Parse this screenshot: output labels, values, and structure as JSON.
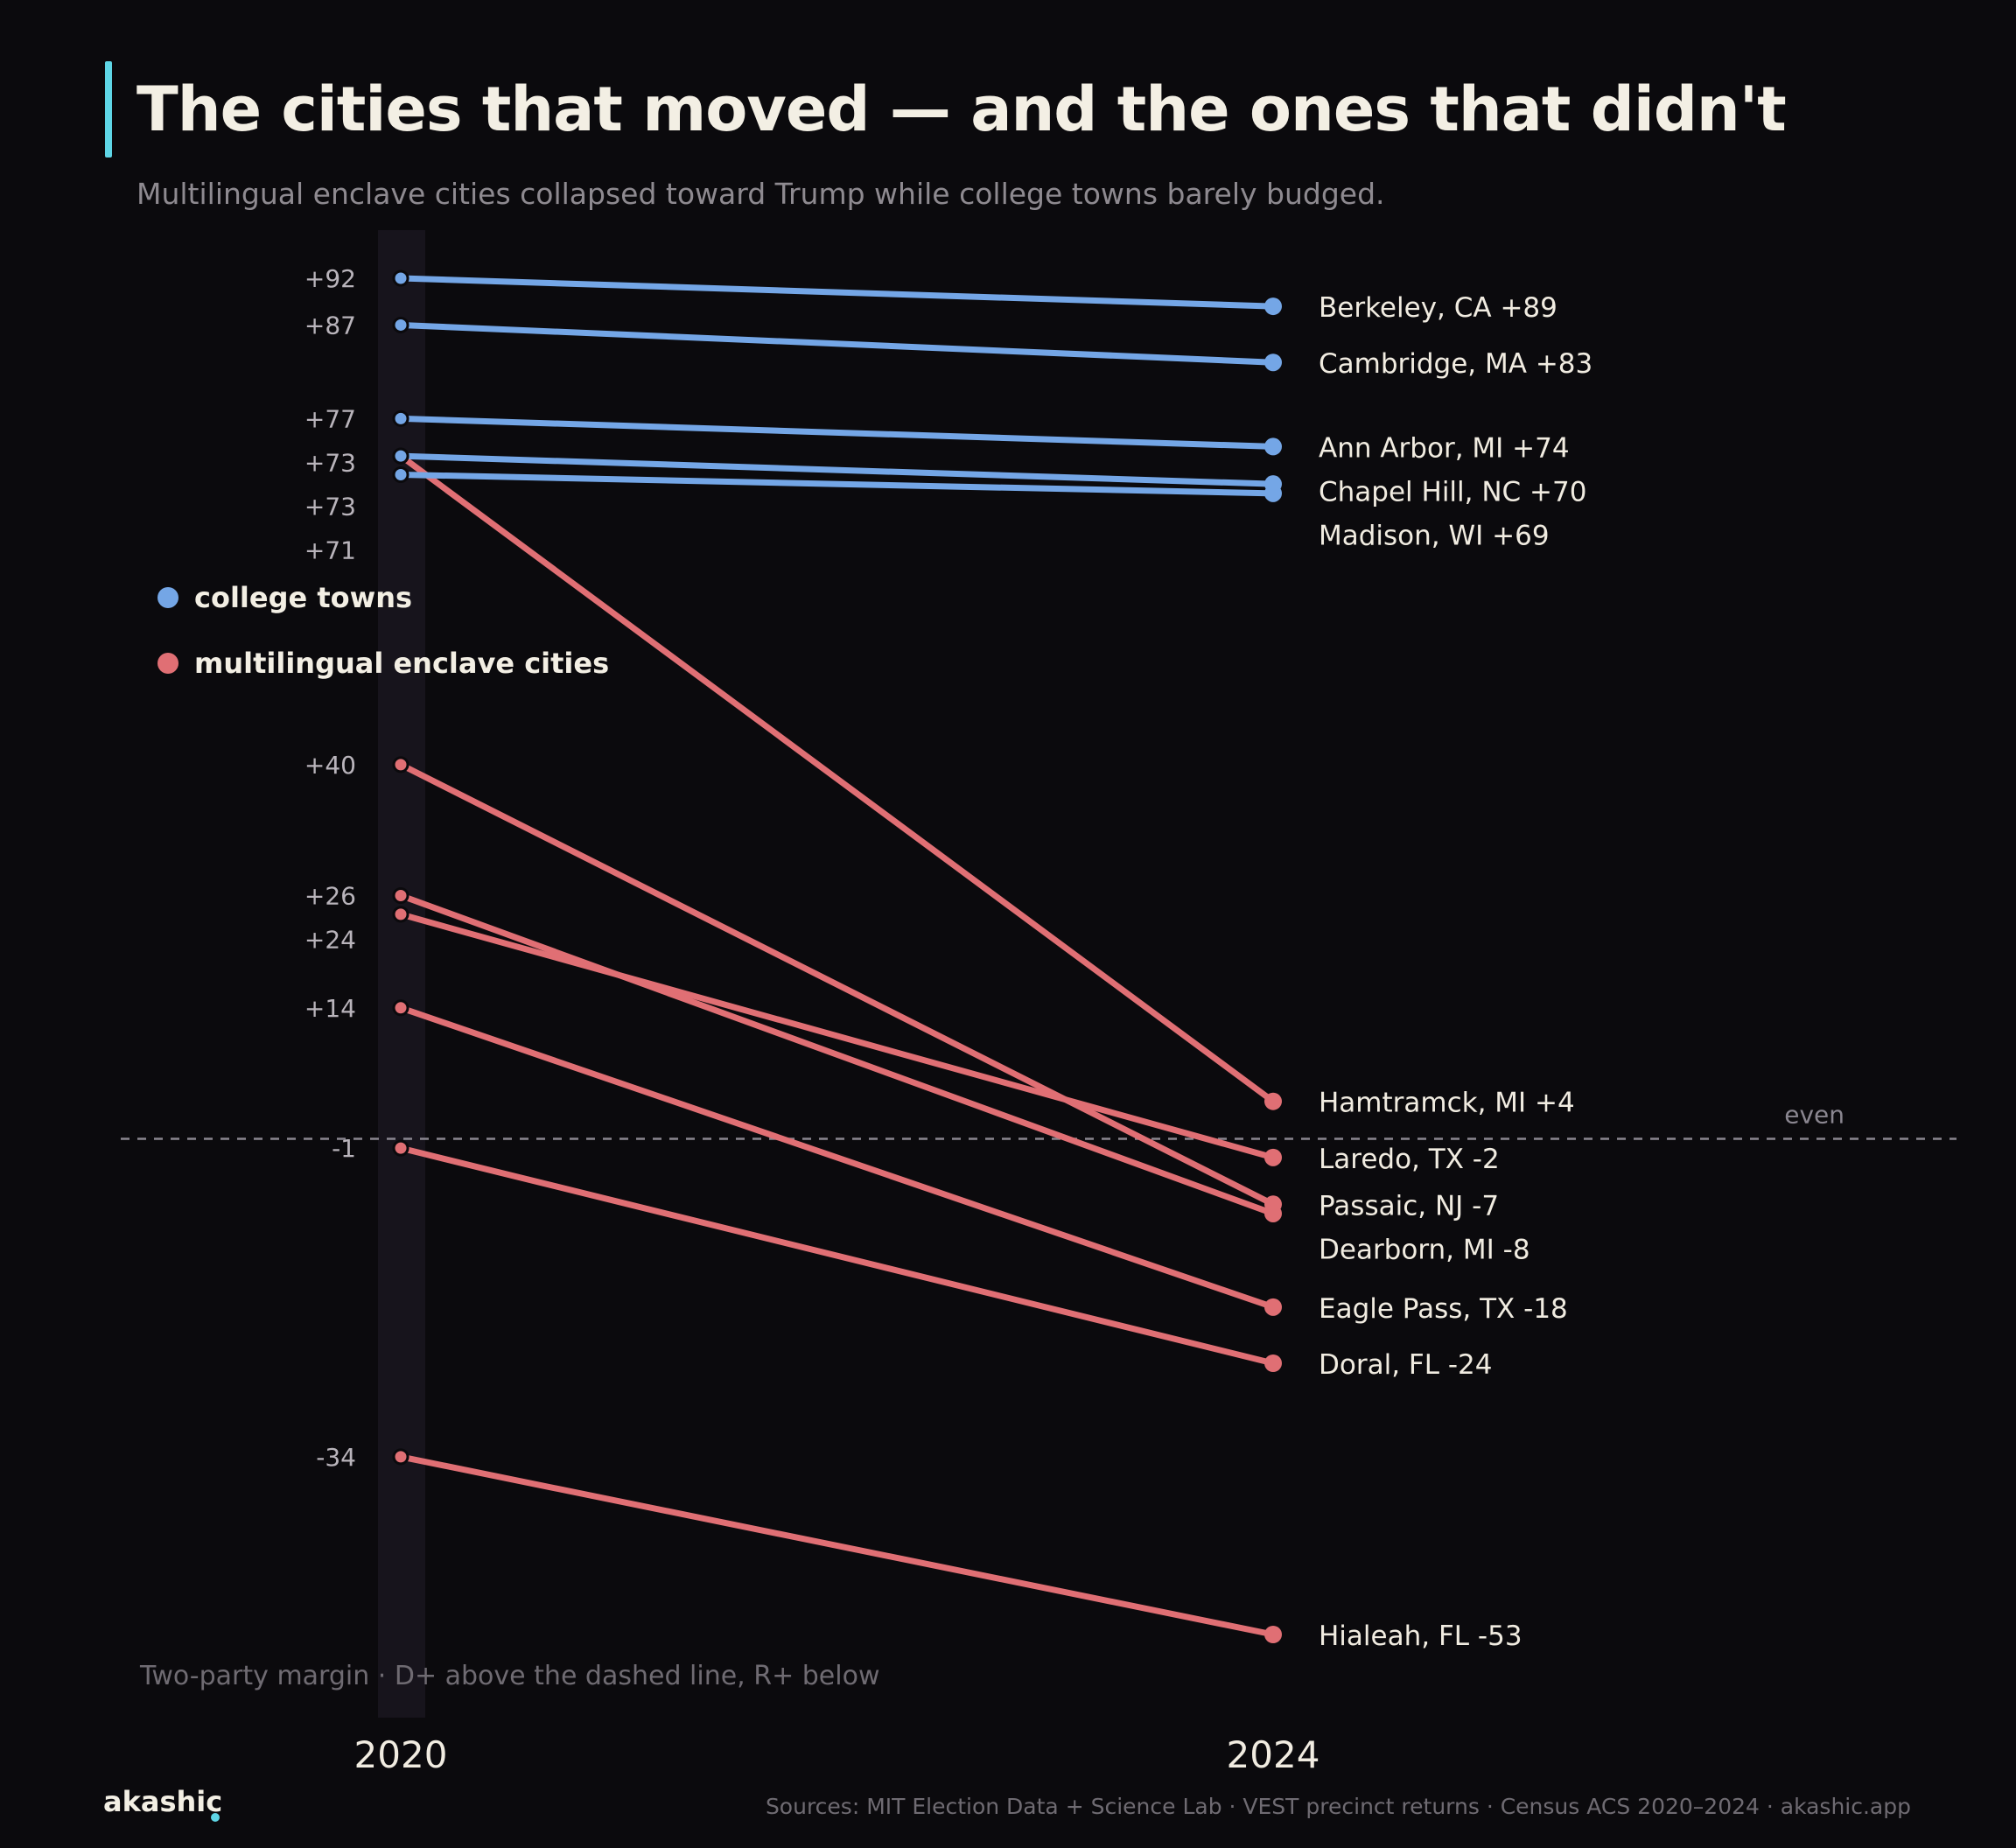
{
  "title": "The cities that moved — and the ones that didn't",
  "subtitle": "Multilingual enclave cities collapsed toward Trump while college towns barely budged.",
  "footer_note": "Two-party margin · D+ above the dashed line, R+ below",
  "brand": "akashic",
  "sources": "Sources: MIT Election Data + Science Lab · VEST precinct returns · Census ACS 2020–2024  ·  akashic.app",
  "colors": {
    "college": "#74a6e6",
    "enclave": "#e06f74",
    "background": "#0b0a0d",
    "accent": "#5fd6e6"
  },
  "chart_data": {
    "type": "line",
    "x": [
      "2020",
      "2024"
    ],
    "ylim": [
      -53,
      92
    ],
    "reference_line": {
      "value": 0,
      "label": "even"
    },
    "legend": {
      "placement": "left",
      "entries": [
        {
          "name": "college towns",
          "color": "#74a6e6"
        },
        {
          "name": "multilingual enclave cities",
          "color": "#e06f74"
        }
      ]
    },
    "start_labels": [
      "+92",
      "+87",
      "+77",
      "+73",
      "+73",
      "+71",
      "+40",
      "+26",
      "+24",
      "+14",
      "-1",
      "-34"
    ],
    "series": [
      {
        "name": "Berkeley, CA",
        "group": "college",
        "values": [
          92,
          89
        ],
        "end_label": "+89"
      },
      {
        "name": "Cambridge, MA",
        "group": "college",
        "values": [
          87,
          83
        ],
        "end_label": "+83"
      },
      {
        "name": "Ann Arbor, MI",
        "group": "college",
        "values": [
          77,
          74
        ],
        "end_label": "+74"
      },
      {
        "name": "Chapel Hill, NC",
        "group": "college",
        "values": [
          73,
          70
        ],
        "end_label": "+70"
      },
      {
        "name": "Madison, WI",
        "group": "college",
        "values": [
          71,
          69
        ],
        "end_label": "+69"
      },
      {
        "name": "Hamtramck, MI",
        "group": "enclave",
        "values": [
          73,
          4
        ],
        "end_label": "+4"
      },
      {
        "name": "Laredo, TX",
        "group": "enclave",
        "values": [
          24,
          -2
        ],
        "end_label": "-2"
      },
      {
        "name": "Passaic, NJ",
        "group": "enclave",
        "values": [
          40,
          -7
        ],
        "end_label": "-7"
      },
      {
        "name": "Dearborn, MI",
        "group": "enclave",
        "values": [
          26,
          -8
        ],
        "end_label": "-8"
      },
      {
        "name": "Eagle Pass, TX",
        "group": "enclave",
        "values": [
          14,
          -18
        ],
        "end_label": "-18"
      },
      {
        "name": "Doral, FL",
        "group": "enclave",
        "values": [
          -1,
          -24
        ],
        "end_label": "-24"
      },
      {
        "name": "Hialeah, FL",
        "group": "enclave",
        "values": [
          -34,
          -53
        ],
        "end_label": "-53"
      }
    ]
  }
}
